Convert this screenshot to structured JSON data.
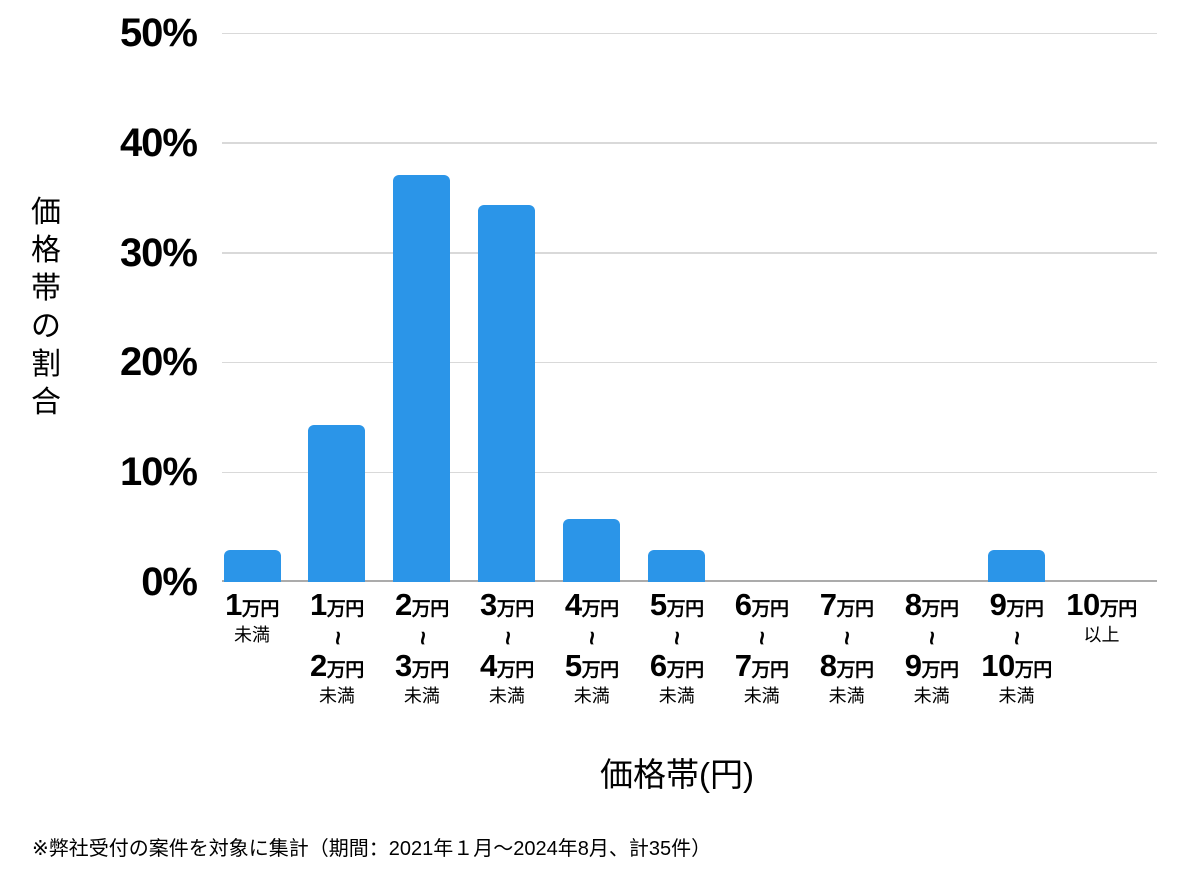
{
  "chart_data": {
    "type": "bar",
    "title": "",
    "xlabel": "価格帯(円)",
    "ylabel": "価格帯の割合",
    "ylim": [
      0,
      50
    ],
    "yticks": [
      {
        "value": 0,
        "label": "0%"
      },
      {
        "value": 10,
        "label": "10%"
      },
      {
        "value": 20,
        "label": "20%"
      },
      {
        "value": 30,
        "label": "30%"
      },
      {
        "value": 40,
        "label": "40%"
      },
      {
        "value": 50,
        "label": "50%"
      }
    ],
    "grid": true,
    "legend": "none",
    "bar_color": "#2B95E8",
    "range_separator": "～",
    "range_separator_glyph": "~",
    "categories": [
      {
        "from": "1万円",
        "to": null,
        "qualifier": "未満"
      },
      {
        "from": "1万円",
        "to": "2万円",
        "qualifier": "未満"
      },
      {
        "from": "2万円",
        "to": "3万円",
        "qualifier": "未満"
      },
      {
        "from": "3万円",
        "to": "4万円",
        "qualifier": "未満"
      },
      {
        "from": "4万円",
        "to": "5万円",
        "qualifier": "未満"
      },
      {
        "from": "5万円",
        "to": "6万円",
        "qualifier": "未満"
      },
      {
        "from": "6万円",
        "to": "7万円",
        "qualifier": "未満"
      },
      {
        "from": "7万円",
        "to": "8万円",
        "qualifier": "未満"
      },
      {
        "from": "8万円",
        "to": "9万円",
        "qualifier": "未満"
      },
      {
        "from": "9万円",
        "to": "10万円",
        "qualifier": "未満"
      },
      {
        "from": "10万円",
        "to": null,
        "qualifier": "以上"
      }
    ],
    "values": [
      2.9,
      14.3,
      37.1,
      34.3,
      5.7,
      2.9,
      0,
      0,
      0,
      2.9,
      0
    ]
  },
  "footnote": "※弊社受付の案件を対象に集計（期間：2021年１月～2024年8月、計35件）"
}
